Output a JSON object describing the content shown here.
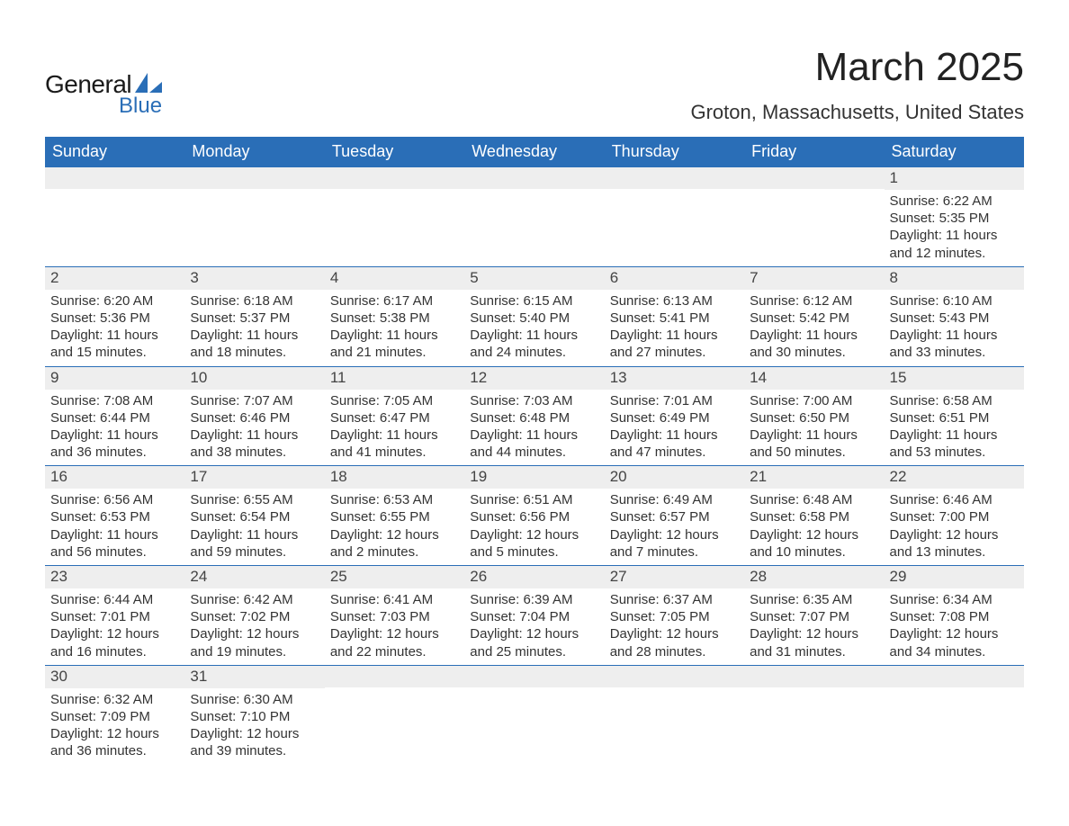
{
  "logo": {
    "word1": "General",
    "word2": "Blue",
    "shape_color": "#2a6eb7",
    "text_color_dark": "#1a1a1a",
    "text_color_blue": "#2a6eb7"
  },
  "title": "March 2025",
  "subtitle": "Groton, Massachusetts, United States",
  "colors": {
    "header_bg": "#2a6eb7",
    "header_text": "#ffffff",
    "daynum_bg": "#eeeeee",
    "row_border": "#2a6eb7",
    "body_text": "#333333"
  },
  "day_labels": [
    "Sunday",
    "Monday",
    "Tuesday",
    "Wednesday",
    "Thursday",
    "Friday",
    "Saturday"
  ],
  "weeks": [
    [
      {
        "n": "",
        "sunrise": "",
        "sunset": "",
        "daylight": ""
      },
      {
        "n": "",
        "sunrise": "",
        "sunset": "",
        "daylight": ""
      },
      {
        "n": "",
        "sunrise": "",
        "sunset": "",
        "daylight": ""
      },
      {
        "n": "",
        "sunrise": "",
        "sunset": "",
        "daylight": ""
      },
      {
        "n": "",
        "sunrise": "",
        "sunset": "",
        "daylight": ""
      },
      {
        "n": "",
        "sunrise": "",
        "sunset": "",
        "daylight": ""
      },
      {
        "n": "1",
        "sunrise": "Sunrise: 6:22 AM",
        "sunset": "Sunset: 5:35 PM",
        "daylight": "Daylight: 11 hours and 12 minutes."
      }
    ],
    [
      {
        "n": "2",
        "sunrise": "Sunrise: 6:20 AM",
        "sunset": "Sunset: 5:36 PM",
        "daylight": "Daylight: 11 hours and 15 minutes."
      },
      {
        "n": "3",
        "sunrise": "Sunrise: 6:18 AM",
        "sunset": "Sunset: 5:37 PM",
        "daylight": "Daylight: 11 hours and 18 minutes."
      },
      {
        "n": "4",
        "sunrise": "Sunrise: 6:17 AM",
        "sunset": "Sunset: 5:38 PM",
        "daylight": "Daylight: 11 hours and 21 minutes."
      },
      {
        "n": "5",
        "sunrise": "Sunrise: 6:15 AM",
        "sunset": "Sunset: 5:40 PM",
        "daylight": "Daylight: 11 hours and 24 minutes."
      },
      {
        "n": "6",
        "sunrise": "Sunrise: 6:13 AM",
        "sunset": "Sunset: 5:41 PM",
        "daylight": "Daylight: 11 hours and 27 minutes."
      },
      {
        "n": "7",
        "sunrise": "Sunrise: 6:12 AM",
        "sunset": "Sunset: 5:42 PM",
        "daylight": "Daylight: 11 hours and 30 minutes."
      },
      {
        "n": "8",
        "sunrise": "Sunrise: 6:10 AM",
        "sunset": "Sunset: 5:43 PM",
        "daylight": "Daylight: 11 hours and 33 minutes."
      }
    ],
    [
      {
        "n": "9",
        "sunrise": "Sunrise: 7:08 AM",
        "sunset": "Sunset: 6:44 PM",
        "daylight": "Daylight: 11 hours and 36 minutes."
      },
      {
        "n": "10",
        "sunrise": "Sunrise: 7:07 AM",
        "sunset": "Sunset: 6:46 PM",
        "daylight": "Daylight: 11 hours and 38 minutes."
      },
      {
        "n": "11",
        "sunrise": "Sunrise: 7:05 AM",
        "sunset": "Sunset: 6:47 PM",
        "daylight": "Daylight: 11 hours and 41 minutes."
      },
      {
        "n": "12",
        "sunrise": "Sunrise: 7:03 AM",
        "sunset": "Sunset: 6:48 PM",
        "daylight": "Daylight: 11 hours and 44 minutes."
      },
      {
        "n": "13",
        "sunrise": "Sunrise: 7:01 AM",
        "sunset": "Sunset: 6:49 PM",
        "daylight": "Daylight: 11 hours and 47 minutes."
      },
      {
        "n": "14",
        "sunrise": "Sunrise: 7:00 AM",
        "sunset": "Sunset: 6:50 PM",
        "daylight": "Daylight: 11 hours and 50 minutes."
      },
      {
        "n": "15",
        "sunrise": "Sunrise: 6:58 AM",
        "sunset": "Sunset: 6:51 PM",
        "daylight": "Daylight: 11 hours and 53 minutes."
      }
    ],
    [
      {
        "n": "16",
        "sunrise": "Sunrise: 6:56 AM",
        "sunset": "Sunset: 6:53 PM",
        "daylight": "Daylight: 11 hours and 56 minutes."
      },
      {
        "n": "17",
        "sunrise": "Sunrise: 6:55 AM",
        "sunset": "Sunset: 6:54 PM",
        "daylight": "Daylight: 11 hours and 59 minutes."
      },
      {
        "n": "18",
        "sunrise": "Sunrise: 6:53 AM",
        "sunset": "Sunset: 6:55 PM",
        "daylight": "Daylight: 12 hours and 2 minutes."
      },
      {
        "n": "19",
        "sunrise": "Sunrise: 6:51 AM",
        "sunset": "Sunset: 6:56 PM",
        "daylight": "Daylight: 12 hours and 5 minutes."
      },
      {
        "n": "20",
        "sunrise": "Sunrise: 6:49 AM",
        "sunset": "Sunset: 6:57 PM",
        "daylight": "Daylight: 12 hours and 7 minutes."
      },
      {
        "n": "21",
        "sunrise": "Sunrise: 6:48 AM",
        "sunset": "Sunset: 6:58 PM",
        "daylight": "Daylight: 12 hours and 10 minutes."
      },
      {
        "n": "22",
        "sunrise": "Sunrise: 6:46 AM",
        "sunset": "Sunset: 7:00 PM",
        "daylight": "Daylight: 12 hours and 13 minutes."
      }
    ],
    [
      {
        "n": "23",
        "sunrise": "Sunrise: 6:44 AM",
        "sunset": "Sunset: 7:01 PM",
        "daylight": "Daylight: 12 hours and 16 minutes."
      },
      {
        "n": "24",
        "sunrise": "Sunrise: 6:42 AM",
        "sunset": "Sunset: 7:02 PM",
        "daylight": "Daylight: 12 hours and 19 minutes."
      },
      {
        "n": "25",
        "sunrise": "Sunrise: 6:41 AM",
        "sunset": "Sunset: 7:03 PM",
        "daylight": "Daylight: 12 hours and 22 minutes."
      },
      {
        "n": "26",
        "sunrise": "Sunrise: 6:39 AM",
        "sunset": "Sunset: 7:04 PM",
        "daylight": "Daylight: 12 hours and 25 minutes."
      },
      {
        "n": "27",
        "sunrise": "Sunrise: 6:37 AM",
        "sunset": "Sunset: 7:05 PM",
        "daylight": "Daylight: 12 hours and 28 minutes."
      },
      {
        "n": "28",
        "sunrise": "Sunrise: 6:35 AM",
        "sunset": "Sunset: 7:07 PM",
        "daylight": "Daylight: 12 hours and 31 minutes."
      },
      {
        "n": "29",
        "sunrise": "Sunrise: 6:34 AM",
        "sunset": "Sunset: 7:08 PM",
        "daylight": "Daylight: 12 hours and 34 minutes."
      }
    ],
    [
      {
        "n": "30",
        "sunrise": "Sunrise: 6:32 AM",
        "sunset": "Sunset: 7:09 PM",
        "daylight": "Daylight: 12 hours and 36 minutes."
      },
      {
        "n": "31",
        "sunrise": "Sunrise: 6:30 AM",
        "sunset": "Sunset: 7:10 PM",
        "daylight": "Daylight: 12 hours and 39 minutes."
      },
      {
        "n": "",
        "sunrise": "",
        "sunset": "",
        "daylight": ""
      },
      {
        "n": "",
        "sunrise": "",
        "sunset": "",
        "daylight": ""
      },
      {
        "n": "",
        "sunrise": "",
        "sunset": "",
        "daylight": ""
      },
      {
        "n": "",
        "sunrise": "",
        "sunset": "",
        "daylight": ""
      },
      {
        "n": "",
        "sunrise": "",
        "sunset": "",
        "daylight": ""
      }
    ]
  ]
}
